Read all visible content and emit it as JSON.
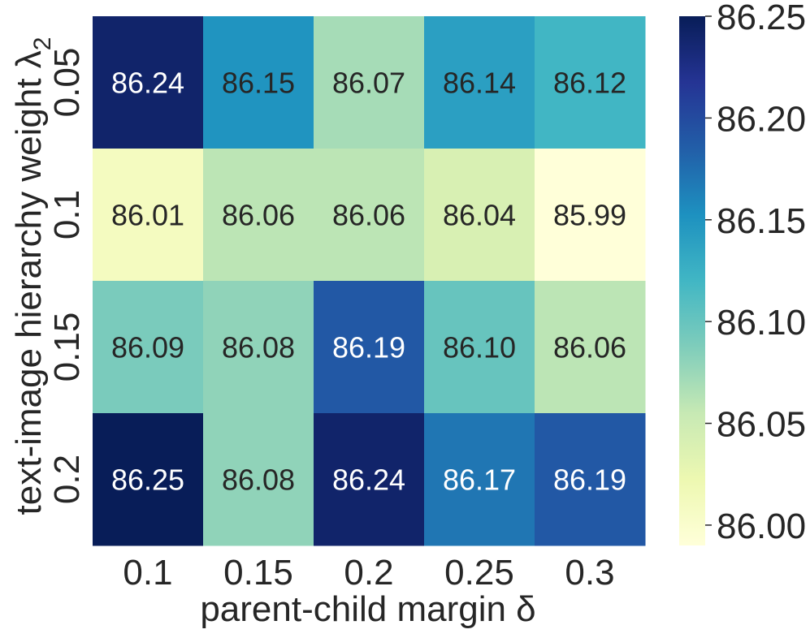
{
  "chart_data": {
    "type": "heatmap",
    "x_categories": [
      "0.1",
      "0.15",
      "0.2",
      "0.25",
      "0.3"
    ],
    "y_categories": [
      "0.05",
      "0.1",
      "0.15",
      "0.2"
    ],
    "values": [
      [
        86.24,
        86.15,
        86.07,
        86.14,
        86.12
      ],
      [
        86.01,
        86.06,
        86.06,
        86.04,
        85.99
      ],
      [
        86.09,
        86.08,
        86.19,
        86.1,
        86.06
      ],
      [
        86.25,
        86.08,
        86.24,
        86.17,
        86.19
      ]
    ],
    "value_labels": [
      [
        "86.24",
        "86.15",
        "86.07",
        "86.14",
        "86.12"
      ],
      [
        "86.01",
        "86.06",
        "86.06",
        "86.04",
        "85.99"
      ],
      [
        "86.09",
        "86.08",
        "86.19",
        "86.10",
        "86.06"
      ],
      [
        "86.25",
        "86.08",
        "86.24",
        "86.17",
        "86.19"
      ]
    ],
    "xlabel": "parent-child margin δ",
    "ylabel": "text-image hierarchy weight λ",
    "ylabel_subscript": "2",
    "colormap": "YlGnBu",
    "colorbar": {
      "range": [
        85.99,
        86.25
      ],
      "ticks": [
        86.0,
        86.05,
        86.1,
        86.15,
        86.2,
        86.25
      ],
      "tick_labels": [
        "86.00",
        "86.05",
        "86.10",
        "86.15",
        "86.20",
        "86.25"
      ],
      "placement": "right"
    },
    "annotation_colors": {
      "dark": "#262626",
      "light": "#ffffff"
    }
  }
}
